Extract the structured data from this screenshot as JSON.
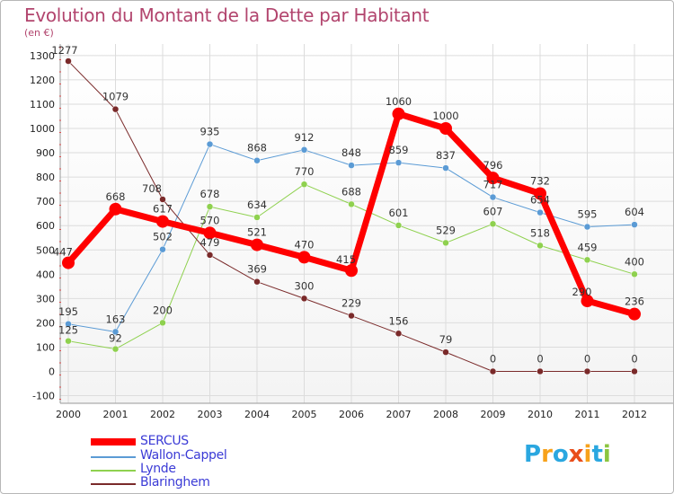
{
  "title": "Evolution du Montant de la Dette par Habitant",
  "unit_label": "(en €)",
  "logo": {
    "text": "Proxiti",
    "letters": [
      "P",
      "r",
      "o",
      "x",
      "i",
      "t",
      "i"
    ],
    "colors": [
      "#2aa7e0",
      "#f7a21b",
      "#2aa7e0",
      "#e94e1b",
      "#f7a21b",
      "#2aa7e0",
      "#8bc53f"
    ]
  },
  "chart_data": {
    "type": "line",
    "title": "Evolution du Montant de la Dette par Habitant",
    "ylabel": "(en €)",
    "xlabel": "",
    "x": [
      "2000",
      "2001",
      "2002",
      "2003",
      "2004",
      "2005",
      "2006",
      "2007",
      "2008",
      "2009",
      "2010",
      "2011",
      "2012"
    ],
    "yticks": [
      "-100",
      "0",
      "100",
      "200",
      "300",
      "400",
      "500",
      "600",
      "700",
      "800",
      "900",
      "1000",
      "1100",
      "1200",
      "1300"
    ],
    "ylim": [
      -100,
      1300
    ],
    "grid": true,
    "series": [
      {
        "name": "SERCUS",
        "color": "#ff0000",
        "width": 7,
        "marker": 7,
        "values": [
          447,
          668,
          617,
          570,
          521,
          470,
          415,
          1060,
          1000,
          796,
          732,
          290,
          236
        ],
        "labels": [
          "447",
          "668",
          "617",
          "570",
          "521",
          "470",
          "415",
          "1060",
          "1000",
          "796",
          "732",
          "290",
          "236"
        ]
      },
      {
        "name": "Wallon-Cappel",
        "color": "#5b9bd5",
        "width": 1,
        "marker": 3.5,
        "values": [
          195,
          163,
          502,
          935,
          868,
          912,
          848,
          859,
          837,
          717,
          654,
          595,
          604
        ],
        "labels": [
          "195",
          "163",
          "502",
          "935",
          "868",
          "912",
          "848",
          "859",
          "837",
          "717",
          "654",
          "595",
          "604"
        ]
      },
      {
        "name": "Lynde",
        "color": "#8fd14f",
        "width": 1,
        "marker": 3.5,
        "values": [
          125,
          92,
          200,
          678,
          634,
          770,
          688,
          601,
          529,
          607,
          518,
          459,
          400
        ],
        "labels": [
          "125",
          "92",
          "200",
          "678",
          "634",
          "770",
          "688",
          "601",
          "529",
          "607",
          "518",
          "459",
          "400"
        ]
      },
      {
        "name": "Blaringhem",
        "color": "#7a2a2a",
        "width": 1,
        "marker": 3.5,
        "values": [
          1277,
          1079,
          708,
          479,
          369,
          300,
          229,
          156,
          79,
          0,
          0,
          0,
          0
        ],
        "labels": [
          "1277",
          "1079",
          "708",
          "479",
          "369",
          "300",
          "229",
          "156",
          "79",
          "0",
          "0",
          "0",
          "0"
        ]
      }
    ]
  }
}
